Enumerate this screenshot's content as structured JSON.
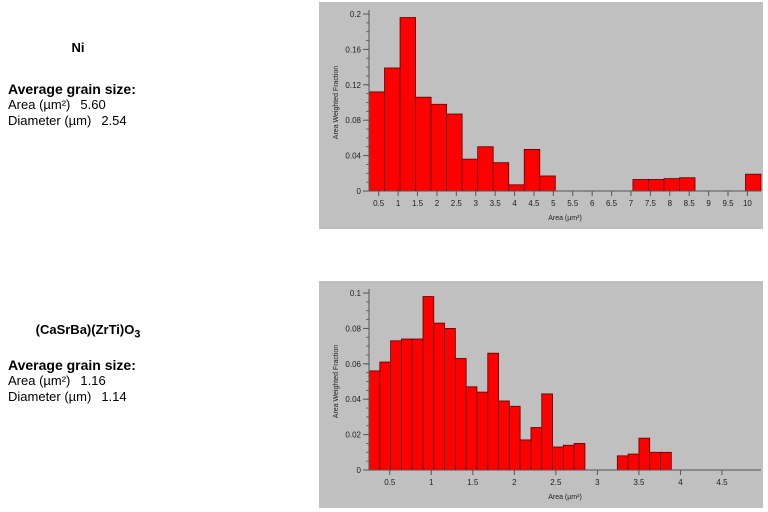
{
  "panels": [
    {
      "sample": {
        "label": "Ni",
        "sub": ""
      },
      "avg_heading": "Average grain size:",
      "area": {
        "label": "Area (µm²)",
        "value": "5.60"
      },
      "diameter": {
        "label": "Diameter (µm)",
        "value": "2.54"
      }
    },
    {
      "sample": {
        "label": "(CaSrBa)(ZrTi)O",
        "sub": "3"
      },
      "avg_heading": "Average grain size:",
      "area": {
        "label": "Area (µm²)",
        "value": "1.16"
      },
      "diameter": {
        "label": "Diameter (µm)",
        "value": "1.14"
      }
    }
  ],
  "chart_data": [
    {
      "type": "bar",
      "xlabel": "Area (µm²)",
      "ylabel": "Area Weighted Fraction",
      "xlim": [
        0.25,
        10.35
      ],
      "ylim": [
        0,
        0.2
      ],
      "yticks": [
        0,
        0.04,
        0.08,
        0.12,
        0.16,
        0.2
      ],
      "ytick_labels": [
        "0",
        "0.04",
        "0.08",
        "0.12",
        "0.16",
        "0.2"
      ],
      "xticks": [
        0.5,
        1,
        1.5,
        2,
        2.5,
        3,
        3.5,
        4,
        4.5,
        5,
        5.5,
        6,
        6.5,
        7,
        7.5,
        8,
        8.5,
        9,
        9.5,
        10
      ],
      "xtick_labels": [
        "0.5",
        "1",
        "1.5",
        "2",
        "2.5",
        "3",
        "3.5",
        "4",
        "4.5",
        "5",
        "5.5",
        "6",
        "6.5",
        "7",
        "7.5",
        "8",
        "8.5",
        "9",
        "9.5",
        "10"
      ],
      "bin_width": 0.4,
      "bins": [
        {
          "x0": 0.25,
          "value": 0.112
        },
        {
          "x0": 0.65,
          "value": 0.139
        },
        {
          "x0": 1.05,
          "value": 0.196
        },
        {
          "x0": 1.45,
          "value": 0.106
        },
        {
          "x0": 1.85,
          "value": 0.098
        },
        {
          "x0": 2.25,
          "value": 0.087
        },
        {
          "x0": 2.65,
          "value": 0.036
        },
        {
          "x0": 3.05,
          "value": 0.05
        },
        {
          "x0": 3.45,
          "value": 0.032
        },
        {
          "x0": 3.85,
          "value": 0.007
        },
        {
          "x0": 4.25,
          "value": 0.047
        },
        {
          "x0": 4.65,
          "value": 0.017
        },
        {
          "x0": 7.05,
          "value": 0.013
        },
        {
          "x0": 7.45,
          "value": 0.013
        },
        {
          "x0": 7.85,
          "value": 0.014
        },
        {
          "x0": 8.25,
          "value": 0.015
        },
        {
          "x0": 9.95,
          "value": 0.019
        }
      ],
      "grid": false,
      "bar_color": "#ff0000",
      "plot_background": "#c0c0c0"
    },
    {
      "type": "bar",
      "xlabel": "Area (µm²)",
      "ylabel": "Area Weighted Fraction",
      "xlim": [
        0.25,
        4.97
      ],
      "ylim": [
        0,
        0.1
      ],
      "yticks": [
        0,
        0.02,
        0.04,
        0.06,
        0.08,
        0.1
      ],
      "ytick_labels": [
        "0",
        "0.02",
        "0.04",
        "0.06",
        "0.08",
        "0.1"
      ],
      "xticks": [
        0.5,
        1,
        1.5,
        2,
        2.5,
        3,
        3.5,
        4,
        4.5
      ],
      "xtick_labels": [
        "0.5",
        "1",
        "1.5",
        "2",
        "2.5",
        "3",
        "3.5",
        "4",
        "4.5"
      ],
      "bin_width": 0.13,
      "bins": [
        {
          "x0": 0.25,
          "value": 0.056
        },
        {
          "x0": 0.38,
          "value": 0.061
        },
        {
          "x0": 0.51,
          "value": 0.073
        },
        {
          "x0": 0.64,
          "value": 0.074
        },
        {
          "x0": 0.77,
          "value": 0.074
        },
        {
          "x0": 0.9,
          "value": 0.098
        },
        {
          "x0": 1.03,
          "value": 0.083
        },
        {
          "x0": 1.16,
          "value": 0.08
        },
        {
          "x0": 1.29,
          "value": 0.063
        },
        {
          "x0": 1.42,
          "value": 0.047
        },
        {
          "x0": 1.55,
          "value": 0.044
        },
        {
          "x0": 1.68,
          "value": 0.066
        },
        {
          "x0": 1.81,
          "value": 0.039
        },
        {
          "x0": 1.94,
          "value": 0.036
        },
        {
          "x0": 2.07,
          "value": 0.017
        },
        {
          "x0": 2.2,
          "value": 0.024
        },
        {
          "x0": 2.33,
          "value": 0.043
        },
        {
          "x0": 2.46,
          "value": 0.013
        },
        {
          "x0": 2.59,
          "value": 0.014
        },
        {
          "x0": 2.72,
          "value": 0.015
        },
        {
          "x0": 3.24,
          "value": 0.008
        },
        {
          "x0": 3.37,
          "value": 0.009
        },
        {
          "x0": 3.5,
          "value": 0.018
        },
        {
          "x0": 3.63,
          "value": 0.01
        },
        {
          "x0": 3.76,
          "value": 0.01
        }
      ],
      "grid": false,
      "bar_color": "#ff0000",
      "plot_background": "#c0c0c0"
    }
  ]
}
